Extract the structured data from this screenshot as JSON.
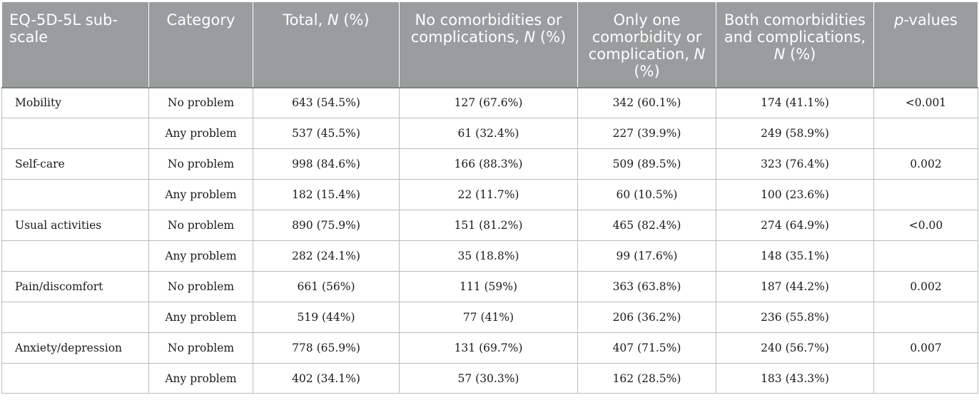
{
  "table": {
    "headers": [
      {
        "before": "EQ-5D-5L sub-scale",
        "italic": "",
        "after": ""
      },
      {
        "before": "Category",
        "italic": "",
        "after": ""
      },
      {
        "before": "Total, ",
        "italic": "N",
        "after": " (%)"
      },
      {
        "before": "No comorbidities or complications, ",
        "italic": "N",
        "after": " (%)"
      },
      {
        "before": "Only one comorbidity or complication, ",
        "italic": "N",
        "after": " (%)"
      },
      {
        "before": "Both comorbidities and complications, ",
        "italic": "N",
        "after": " (%)"
      },
      {
        "before": "",
        "italic": "p",
        "after": "-values"
      }
    ],
    "rows": [
      [
        "Mobility",
        "No problem",
        "643 (54.5%)",
        "127 (67.6%)",
        "342 (60.1%)",
        "174 (41.1%)",
        "<0.001"
      ],
      [
        "",
        "Any problem",
        "537 (45.5%)",
        "61 (32.4%)",
        "227 (39.9%)",
        "249 (58.9%)",
        ""
      ],
      [
        "Self-care",
        "No problem",
        "998 (84.6%)",
        "166 (88.3%)",
        "509 (89.5%)",
        "323 (76.4%)",
        "0.002"
      ],
      [
        "",
        "Any problem",
        "182 (15.4%)",
        "22 (11.7%)",
        "60 (10.5%)",
        "100 (23.6%)",
        ""
      ],
      [
        "Usual activities",
        "No problem",
        "890 (75.9%)",
        "151 (81.2%)",
        "465 (82.4%)",
        "274 (64.9%)",
        "<0.00"
      ],
      [
        "",
        "Any problem",
        "282 (24.1%)",
        "35 (18.8%)",
        "99 (17.6%)",
        "148 (35.1%)",
        ""
      ],
      [
        "Pain/discomfort",
        "No problem",
        "661 (56%)",
        "111 (59%)",
        "363 (63.8%)",
        "187 (44.2%)",
        "0.002"
      ],
      [
        "",
        "Any problem",
        "519 (44%)",
        "77 (41%)",
        "206 (36.2%)",
        "236 (55.8%)",
        ""
      ],
      [
        "Anxiety/depression",
        "No problem",
        "778 (65.9%)",
        "131 (69.7%)",
        "407 (71.5%)",
        "240 (56.7%)",
        "0.007"
      ],
      [
        "",
        "Any problem",
        "402 (34.1%)",
        "57 (30.3%)",
        "162 (28.5%)",
        "183 (43.3%)",
        ""
      ]
    ]
  },
  "colors": {
    "header_bg": "#999d9e",
    "header_text": "#ffffff",
    "grid": "#b9bcbd"
  }
}
